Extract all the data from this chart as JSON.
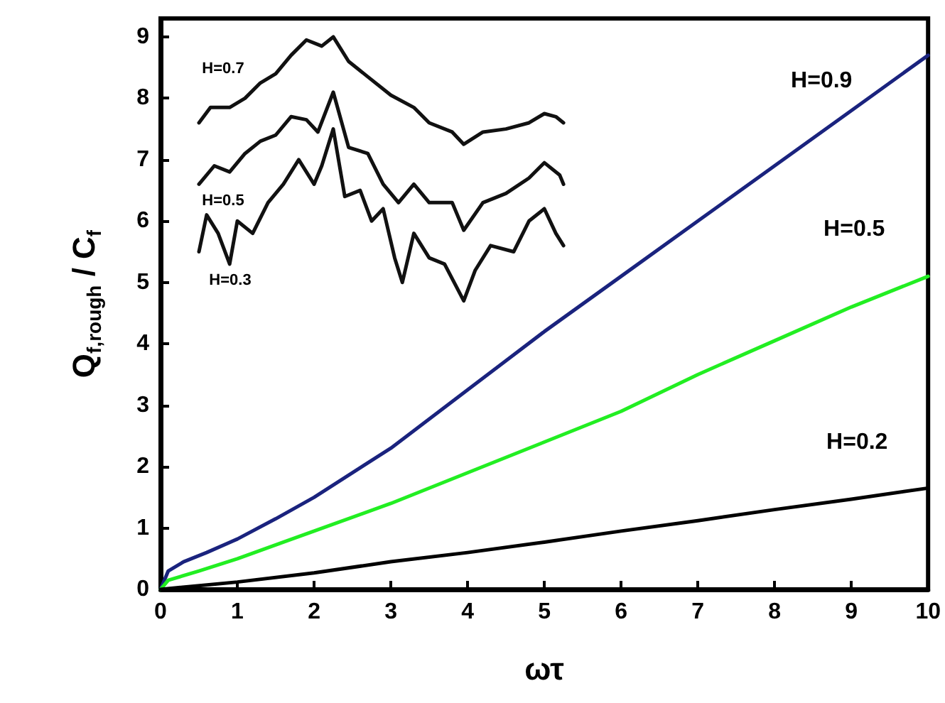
{
  "chart_data": {
    "type": "line",
    "xlabel": "ωτ",
    "ylabel": "Q$_{f,rough}$ / C$_{f}$",
    "xlim": [
      0,
      10
    ],
    "ylim": [
      0,
      9.3
    ],
    "xticks": [
      0,
      1,
      2,
      3,
      4,
      5,
      6,
      7,
      8,
      9,
      10
    ],
    "yticks": [
      0,
      1,
      2,
      3,
      4,
      5,
      6,
      7,
      8,
      9
    ],
    "grid": false,
    "marker": "none",
    "line_style": "solid",
    "series": [
      {
        "name": "H=0.9",
        "color": "#1a237e",
        "x": [
          0,
          0.1,
          0.3,
          0.6,
          1,
          1.5,
          2,
          3,
          4,
          5,
          6,
          7,
          8,
          9,
          10
        ],
        "values": [
          0,
          0.3,
          0.45,
          0.6,
          0.82,
          1.15,
          1.5,
          2.3,
          3.25,
          4.2,
          5.1,
          6.0,
          6.9,
          7.8,
          8.7
        ]
      },
      {
        "name": "H=0.5",
        "color": "#22ee22",
        "x": [
          0,
          0.1,
          0.5,
          1,
          2,
          3,
          4,
          5,
          6,
          7,
          8,
          9,
          10
        ],
        "values": [
          0,
          0.15,
          0.3,
          0.5,
          0.95,
          1.4,
          1.9,
          2.4,
          2.9,
          3.5,
          4.05,
          4.6,
          5.1
        ]
      },
      {
        "name": "H=0.2",
        "color": "#000000",
        "x": [
          0,
          1,
          2,
          3,
          4,
          5,
          6,
          7,
          8,
          9,
          10
        ],
        "values": [
          0,
          0.12,
          0.27,
          0.45,
          0.6,
          0.77,
          0.95,
          1.12,
          1.3,
          1.47,
          1.65
        ]
      },
      {
        "name": "H=0.7",
        "color": "#111111",
        "x": [
          0.5,
          0.65,
          0.9,
          1.1,
          1.3,
          1.5,
          1.7,
          1.9,
          2.1,
          2.25,
          2.45,
          2.7,
          3.0,
          3.3,
          3.5,
          3.8,
          3.95,
          4.2,
          4.5,
          4.8,
          5.0,
          5.15,
          5.25
        ],
        "values": [
          7.6,
          7.85,
          7.85,
          8.0,
          8.25,
          8.4,
          8.7,
          8.95,
          8.85,
          9.0,
          8.6,
          8.35,
          8.05,
          7.85,
          7.6,
          7.45,
          7.25,
          7.45,
          7.5,
          7.6,
          7.75,
          7.7,
          7.6
        ]
      },
      {
        "name": "H=0.5",
        "color": "#111111",
        "x": [
          0.5,
          0.7,
          0.9,
          1.1,
          1.3,
          1.5,
          1.7,
          1.9,
          2.05,
          2.25,
          2.45,
          2.7,
          2.9,
          3.1,
          3.3,
          3.5,
          3.8,
          3.95,
          4.2,
          4.5,
          4.8,
          5.0,
          5.2,
          5.25
        ],
        "values": [
          6.6,
          6.9,
          6.8,
          7.1,
          7.3,
          7.4,
          7.7,
          7.65,
          7.45,
          8.1,
          7.2,
          7.1,
          6.6,
          6.3,
          6.6,
          6.3,
          6.3,
          5.85,
          6.3,
          6.45,
          6.7,
          6.95,
          6.75,
          6.6
        ]
      },
      {
        "name": "H=0.3",
        "color": "#111111",
        "x": [
          0.5,
          0.6,
          0.75,
          0.9,
          1.0,
          1.2,
          1.4,
          1.6,
          1.8,
          2.0,
          2.1,
          2.25,
          2.4,
          2.6,
          2.75,
          2.9,
          3.05,
          3.15,
          3.3,
          3.5,
          3.7,
          3.95,
          4.1,
          4.3,
          4.6,
          4.8,
          5.0,
          5.15,
          5.25
        ],
        "values": [
          5.5,
          6.1,
          5.8,
          5.3,
          6.0,
          5.8,
          6.3,
          6.6,
          7.0,
          6.6,
          6.9,
          7.5,
          6.4,
          6.5,
          6.0,
          6.2,
          5.4,
          5.0,
          5.8,
          5.4,
          5.3,
          4.7,
          5.2,
          5.6,
          5.5,
          6.0,
          6.2,
          5.8,
          5.6
        ]
      }
    ]
  }
}
